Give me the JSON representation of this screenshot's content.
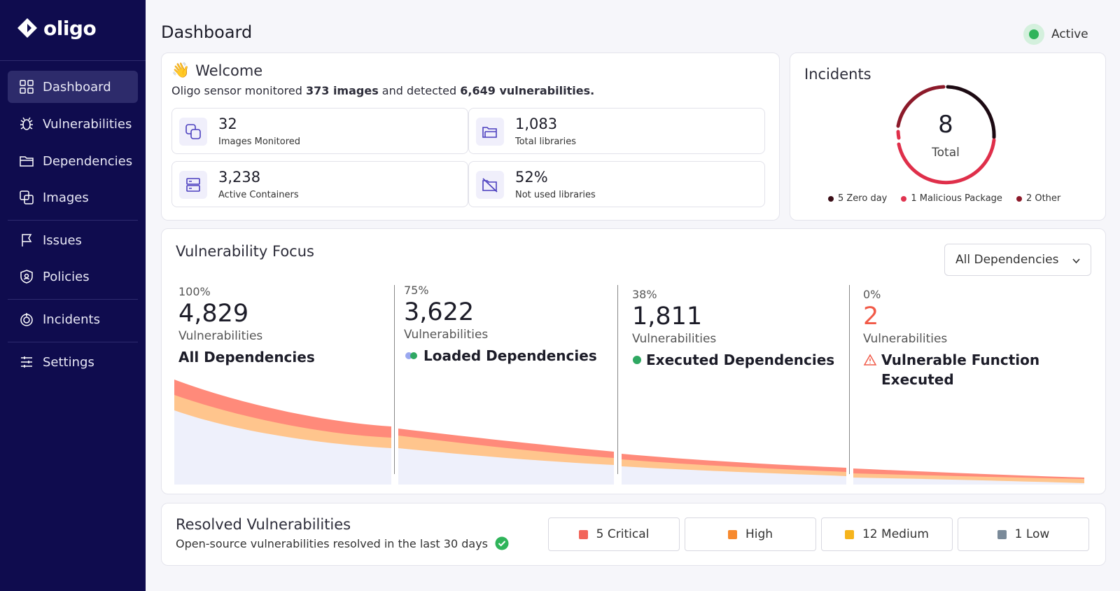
{
  "app": {
    "name": "oligo"
  },
  "sidebar": {
    "items": [
      {
        "label": "Dashboard"
      },
      {
        "label": "Vulnerabilities"
      },
      {
        "label": "Dependencies"
      },
      {
        "label": "Images"
      },
      {
        "label": "Issues"
      },
      {
        "label": "Policies"
      },
      {
        "label": "Incidents"
      },
      {
        "label": "Settings"
      }
    ]
  },
  "header": {
    "title": "Dashboard",
    "status": "Active"
  },
  "welcome": {
    "emoji": "👋",
    "title": "Welcome",
    "text_prefix": "Oligo sensor monitored ",
    "images_count": "373 images",
    "text_middle": " and detected ",
    "vuln_count": "6,649 vulnerabilities.",
    "stats": [
      {
        "value": "32",
        "label": "Images Monitored",
        "icon": "copy-icon"
      },
      {
        "value": "1,083",
        "label": "Total libraries",
        "icon": "folders-icon"
      },
      {
        "value": "3,238",
        "label": "Active Containers",
        "icon": "server-icon"
      },
      {
        "value": "52%",
        "label": "Not used libraries",
        "icon": "folder-off-icon"
      }
    ]
  },
  "incidents": {
    "title": "Incidents",
    "total": "8",
    "total_label": "Total",
    "legend": [
      {
        "label": "5 Zero day",
        "color": "#3a0d16"
      },
      {
        "label": "1 Malicious Package",
        "color": "#e0334f"
      },
      {
        "label": "2 Other",
        "color": "#8c1a2a"
      }
    ]
  },
  "focus": {
    "title": "Vulnerability Focus",
    "filter": "All Dependencies",
    "columns": [
      {
        "pct": "100%",
        "value": "4,829",
        "sub": "Vulnerabilities",
        "name": "All Dependencies"
      },
      {
        "pct": "75%",
        "value": "3,622",
        "sub": "Vulnerabilities",
        "name": "Loaded Dependencies"
      },
      {
        "pct": "38%",
        "value": "1,811",
        "sub": "Vulnerabilities",
        "name": "Executed Dependencies"
      },
      {
        "pct": "0%",
        "value": "2",
        "sub": "Vulnerabilities",
        "name": "Vulnerable Function Executed"
      }
    ]
  },
  "resolved": {
    "title": "Resolved Vulnerabilities",
    "subtitle": "Open-source vulnerabilities resolved in the last 30 days",
    "severities": [
      {
        "label": "5 Critical",
        "color": "#f2655a"
      },
      {
        "label": "High",
        "color": "#f7892e"
      },
      {
        "label": "12 Medium",
        "color": "#f6b41c"
      },
      {
        "label": "1 Low",
        "color": "#7a8a99"
      }
    ]
  }
}
